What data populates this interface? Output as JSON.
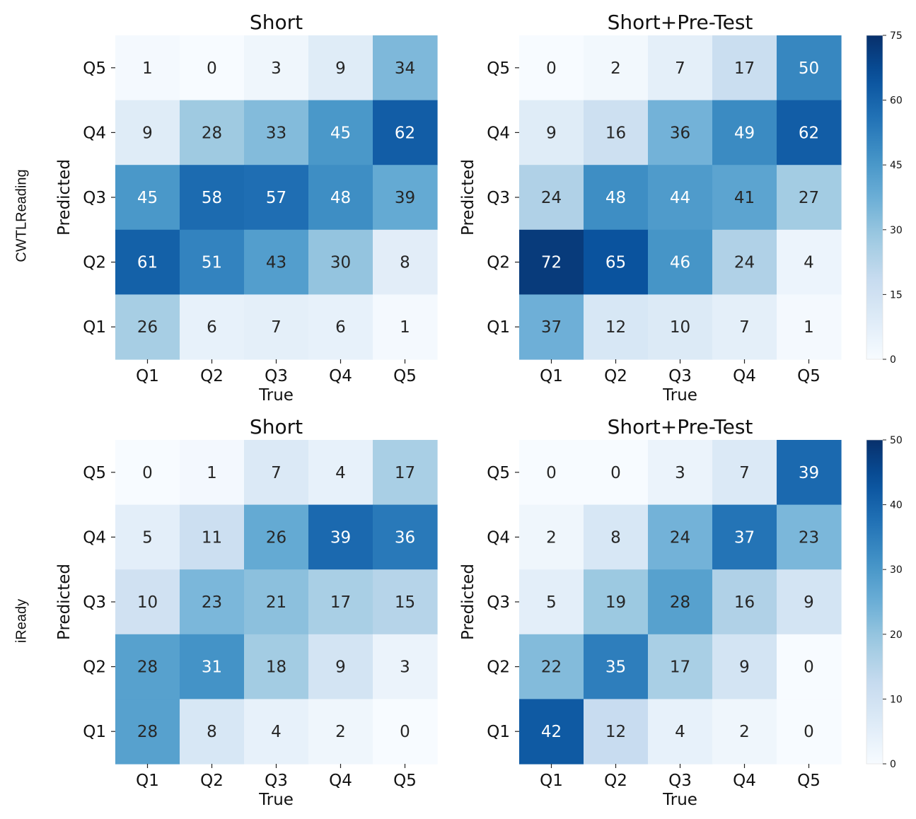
{
  "row_labels": [
    "CWTLReading",
    "iReady"
  ],
  "chart_data": [
    {
      "type": "heatmap",
      "row": "CWTLReading",
      "title": "Short",
      "xlabel": "True",
      "ylabel": "Predicted",
      "x_categories": [
        "Q1",
        "Q2",
        "Q3",
        "Q4",
        "Q5"
      ],
      "y_categories": [
        "Q5",
        "Q4",
        "Q3",
        "Q2",
        "Q1"
      ],
      "values": [
        [
          1,
          0,
          3,
          9,
          34
        ],
        [
          9,
          28,
          33,
          45,
          62
        ],
        [
          45,
          58,
          57,
          48,
          39
        ],
        [
          61,
          51,
          43,
          30,
          8
        ],
        [
          26,
          6,
          7,
          6,
          1
        ]
      ],
      "vmin": 0,
      "vmax": 75,
      "colorbar": null
    },
    {
      "type": "heatmap",
      "row": "CWTLReading",
      "title": "Short+Pre-Test",
      "xlabel": "True",
      "ylabel": "Predicted",
      "x_categories": [
        "Q1",
        "Q2",
        "Q3",
        "Q4",
        "Q5"
      ],
      "y_categories": [
        "Q5",
        "Q4",
        "Q3",
        "Q2",
        "Q1"
      ],
      "values": [
        [
          0,
          2,
          7,
          17,
          50
        ],
        [
          9,
          16,
          36,
          49,
          62
        ],
        [
          24,
          48,
          44,
          41,
          27
        ],
        [
          72,
          65,
          46,
          24,
          4
        ],
        [
          37,
          12,
          10,
          7,
          1
        ]
      ],
      "vmin": 0,
      "vmax": 75,
      "colorbar": {
        "ticks": [
          0,
          15,
          30,
          45,
          60,
          75
        ]
      }
    },
    {
      "type": "heatmap",
      "row": "iReady",
      "title": "Short",
      "xlabel": "True",
      "ylabel": "Predicted",
      "x_categories": [
        "Q1",
        "Q2",
        "Q3",
        "Q4",
        "Q5"
      ],
      "y_categories": [
        "Q5",
        "Q4",
        "Q3",
        "Q2",
        "Q1"
      ],
      "values": [
        [
          0,
          1,
          7,
          4,
          17
        ],
        [
          5,
          11,
          26,
          39,
          36
        ],
        [
          10,
          23,
          21,
          17,
          15
        ],
        [
          28,
          31,
          18,
          9,
          3
        ],
        [
          28,
          8,
          4,
          2,
          0
        ]
      ],
      "vmin": 0,
      "vmax": 50,
      "colorbar": null
    },
    {
      "type": "heatmap",
      "row": "iReady",
      "title": "Short+Pre-Test",
      "xlabel": "True",
      "ylabel": "Predicted",
      "x_categories": [
        "Q1",
        "Q2",
        "Q3",
        "Q4",
        "Q5"
      ],
      "y_categories": [
        "Q5",
        "Q4",
        "Q3",
        "Q2",
        "Q1"
      ],
      "values": [
        [
          0,
          0,
          3,
          7,
          39
        ],
        [
          2,
          8,
          24,
          37,
          23
        ],
        [
          5,
          19,
          28,
          16,
          9
        ],
        [
          22,
          35,
          17,
          9,
          0
        ],
        [
          42,
          12,
          4,
          2,
          0
        ]
      ],
      "vmin": 0,
      "vmax": 50,
      "colorbar": {
        "ticks": [
          0,
          10,
          20,
          30,
          40,
          50
        ]
      }
    }
  ]
}
